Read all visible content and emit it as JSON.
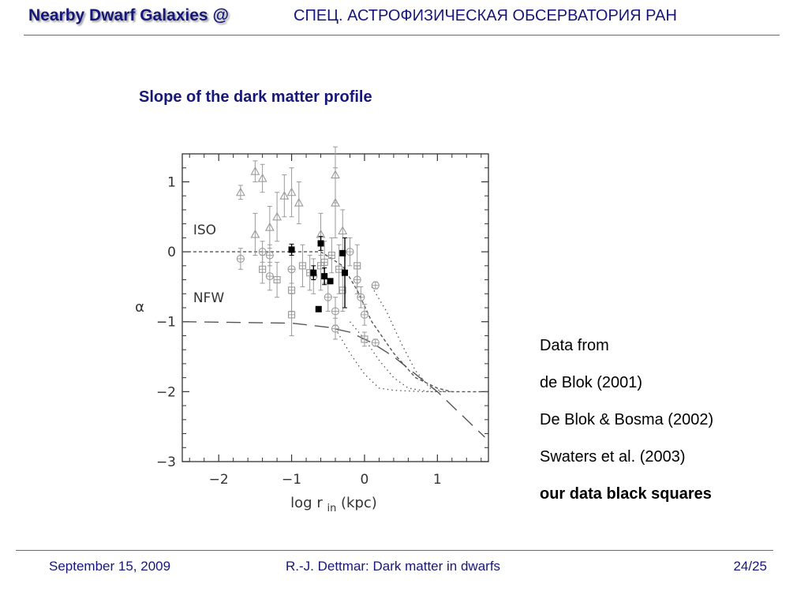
{
  "header": {
    "left_title": "Nearby Dwarf Galaxies @",
    "right_title": "СПЕЦ. АСТРОФИЗИЧЕСКАЯ ОБСЕРВАТОРИЯ РАН"
  },
  "slide_title": "Slope of the dark matter profile",
  "notes": [
    {
      "text": "Data from",
      "bold": false
    },
    {
      "text": "de Blok (2001)",
      "bold": false
    },
    {
      "text": "De Blok & Bosma (2002)",
      "bold": false
    },
    {
      "text": "Swaters et al. (2003)",
      "bold": false
    },
    {
      "text": "our data black squares",
      "bold": true
    }
  ],
  "footer": {
    "date": "September 15, 2009",
    "center": "R.-J. Dettmar: Dark matter in dwarfs",
    "page": "24/25"
  },
  "chart_data": {
    "type": "scatter",
    "title": "",
    "xlabel": "log r",
    "xlabel_sub": "in",
    "xlabel_unit": "(kpc)",
    "ylabel": "α",
    "xlim": [
      -2.5,
      1.7
    ],
    "ylim": [
      -3,
      1.4
    ],
    "x_ticks": [
      -2,
      -1,
      0,
      1
    ],
    "x_tick_labels": [
      "−2",
      "−1",
      "0",
      "1"
    ],
    "y_ticks": [
      -3,
      -2,
      -1,
      0,
      1
    ],
    "y_tick_labels": [
      "−3",
      "−2",
      "−1",
      "0",
      "1"
    ],
    "annotations": [
      {
        "text": "ISO",
        "x": -2.35,
        "y": 0.25
      },
      {
        "text": "NFW",
        "x": -2.35,
        "y": -0.72
      }
    ],
    "colors": {
      "literature": "#9a9a9a",
      "ours": "#000000",
      "axes": "#333333",
      "model": "#555555"
    },
    "series": [
      {
        "marker": "triangle",
        "points": [
          {
            "x": -1.7,
            "y": 0.85,
            "err": 0.1
          },
          {
            "x": -1.5,
            "y": 1.15,
            "err": 0.15
          },
          {
            "x": -1.4,
            "y": 1.05,
            "err": 0.2
          },
          {
            "x": -1.5,
            "y": 0.25,
            "err": 0.3
          },
          {
            "x": -1.3,
            "y": 0.35,
            "err": 0.3
          },
          {
            "x": -1.2,
            "y": 0.5,
            "err": 0.35
          },
          {
            "x": -1.1,
            "y": 0.8,
            "err": 0.3
          },
          {
            "x": -1.0,
            "y": 0.85,
            "err": 0.35
          },
          {
            "x": -0.9,
            "y": 0.7,
            "err": 0.3
          },
          {
            "x": -0.6,
            "y": 0.25,
            "err": 0.3
          },
          {
            "x": -0.4,
            "y": 1.1,
            "err": 0.4
          },
          {
            "x": -0.4,
            "y": 0.7,
            "err": 0.5
          },
          {
            "x": -0.3,
            "y": 0.3,
            "err": 0.3
          }
        ]
      },
      {
        "marker": "circle",
        "points": [
          {
            "x": -1.7,
            "y": -0.1,
            "err": 0.15
          },
          {
            "x": -1.4,
            "y": 0.0,
            "err": 0.15
          },
          {
            "x": -1.3,
            "y": -0.05,
            "err": 0.15
          },
          {
            "x": -1.3,
            "y": -0.35,
            "err": 0.2
          },
          {
            "x": -1.0,
            "y": -0.25,
            "err": 0.2
          },
          {
            "x": -0.7,
            "y": -0.35,
            "err": 0.25
          },
          {
            "x": -0.5,
            "y": -0.65,
            "err": 0.2
          },
          {
            "x": -0.4,
            "y": -0.85,
            "err": 0.2
          },
          {
            "x": -0.4,
            "y": -1.1,
            "err": 0.15
          },
          {
            "x": -0.2,
            "y": 0.0,
            "err": 0.2
          },
          {
            "x": -0.1,
            "y": -0.4,
            "err": 0.2
          },
          {
            "x": -0.05,
            "y": -0.65,
            "err": 0.15
          },
          {
            "x": 0.0,
            "y": -0.9,
            "err": 0.15
          },
          {
            "x": 0.15,
            "y": -0.48,
            "err": 0.05
          },
          {
            "x": 0.15,
            "y": -1.3,
            "err": 0.05
          }
        ]
      },
      {
        "marker": "square-plus",
        "points": [
          {
            "x": -1.4,
            "y": -0.25,
            "err": 0.2
          },
          {
            "x": -1.2,
            "y": -0.4,
            "err": 0.25
          },
          {
            "x": -1.0,
            "y": -0.55,
            "err": 0.3
          },
          {
            "x": -1.0,
            "y": -0.9,
            "err": 0.3
          },
          {
            "x": -0.85,
            "y": -0.2,
            "err": 0.3
          },
          {
            "x": -0.75,
            "y": -0.3,
            "err": 0.25
          },
          {
            "x": -0.6,
            "y": -0.2,
            "err": 0.35
          },
          {
            "x": -0.55,
            "y": -0.15,
            "err": 0.3
          },
          {
            "x": -0.45,
            "y": -0.05,
            "err": 0.25
          },
          {
            "x": -0.35,
            "y": -0.25,
            "err": 0.35
          },
          {
            "x": -0.3,
            "y": -0.55,
            "err": 0.3
          },
          {
            "x": -0.1,
            "y": -0.2,
            "err": 0.3
          },
          {
            "x": 0.0,
            "y": -1.25,
            "err": 0.1
          }
        ]
      },
      {
        "marker": "filled-square",
        "ours": true,
        "points": [
          {
            "x": -1.0,
            "y": 0.03,
            "err": 0.08
          },
          {
            "x": -0.7,
            "y": -0.3,
            "err": 0.1
          },
          {
            "x": -0.63,
            "y": -0.82,
            "err": 0.0
          },
          {
            "x": -0.6,
            "y": 0.12,
            "err": 0.1
          },
          {
            "x": -0.55,
            "y": -0.35,
            "err": 0.12
          },
          {
            "x": -0.47,
            "y": -0.42,
            "err": 0.0
          },
          {
            "x": -0.3,
            "y": -0.02,
            "err": 0.0
          },
          {
            "x": -0.27,
            "y": -0.3,
            "err": 0.5
          }
        ]
      }
    ],
    "models": [
      {
        "style": "dashed",
        "points": [
          [
            -2.5,
            0.0
          ],
          [
            -0.6,
            0.0
          ],
          [
            -0.3,
            -0.2
          ],
          [
            -0.1,
            -0.55
          ],
          [
            0.1,
            -1.0
          ],
          [
            0.4,
            -1.45
          ],
          [
            0.7,
            -1.8
          ],
          [
            1.0,
            -1.95
          ],
          [
            1.2,
            -2.0
          ],
          [
            1.7,
            -2.0
          ]
        ]
      },
      {
        "style": "long-dashed",
        "points": [
          [
            -2.5,
            -1.0
          ],
          [
            -1.0,
            -1.02
          ],
          [
            -0.5,
            -1.08
          ],
          [
            -0.2,
            -1.15
          ],
          [
            0.1,
            -1.3
          ],
          [
            0.4,
            -1.5
          ],
          [
            0.7,
            -1.75
          ],
          [
            1.0,
            -2.0
          ],
          [
            1.3,
            -2.3
          ],
          [
            1.65,
            -2.65
          ]
        ]
      },
      {
        "style": "dotted",
        "points": [
          [
            -0.4,
            -1.1
          ],
          [
            -0.2,
            -1.45
          ],
          [
            0.0,
            -1.75
          ],
          [
            0.2,
            -1.95
          ],
          [
            0.4,
            -1.98
          ],
          [
            0.8,
            -2.0
          ],
          [
            1.2,
            -2.0
          ]
        ]
      },
      {
        "style": "dotted",
        "points": [
          [
            -0.2,
            -1.0
          ],
          [
            0.0,
            -1.25
          ],
          [
            0.2,
            -1.55
          ],
          [
            0.4,
            -1.8
          ],
          [
            0.6,
            -1.95
          ],
          [
            0.9,
            -2.0
          ],
          [
            1.2,
            -2.0
          ]
        ]
      },
      {
        "style": "dotted",
        "points": [
          [
            0.1,
            -0.5
          ],
          [
            0.3,
            -0.85
          ],
          [
            0.5,
            -1.3
          ],
          [
            0.7,
            -1.7
          ],
          [
            0.9,
            -1.95
          ],
          [
            1.1,
            -2.0
          ]
        ]
      }
    ]
  }
}
